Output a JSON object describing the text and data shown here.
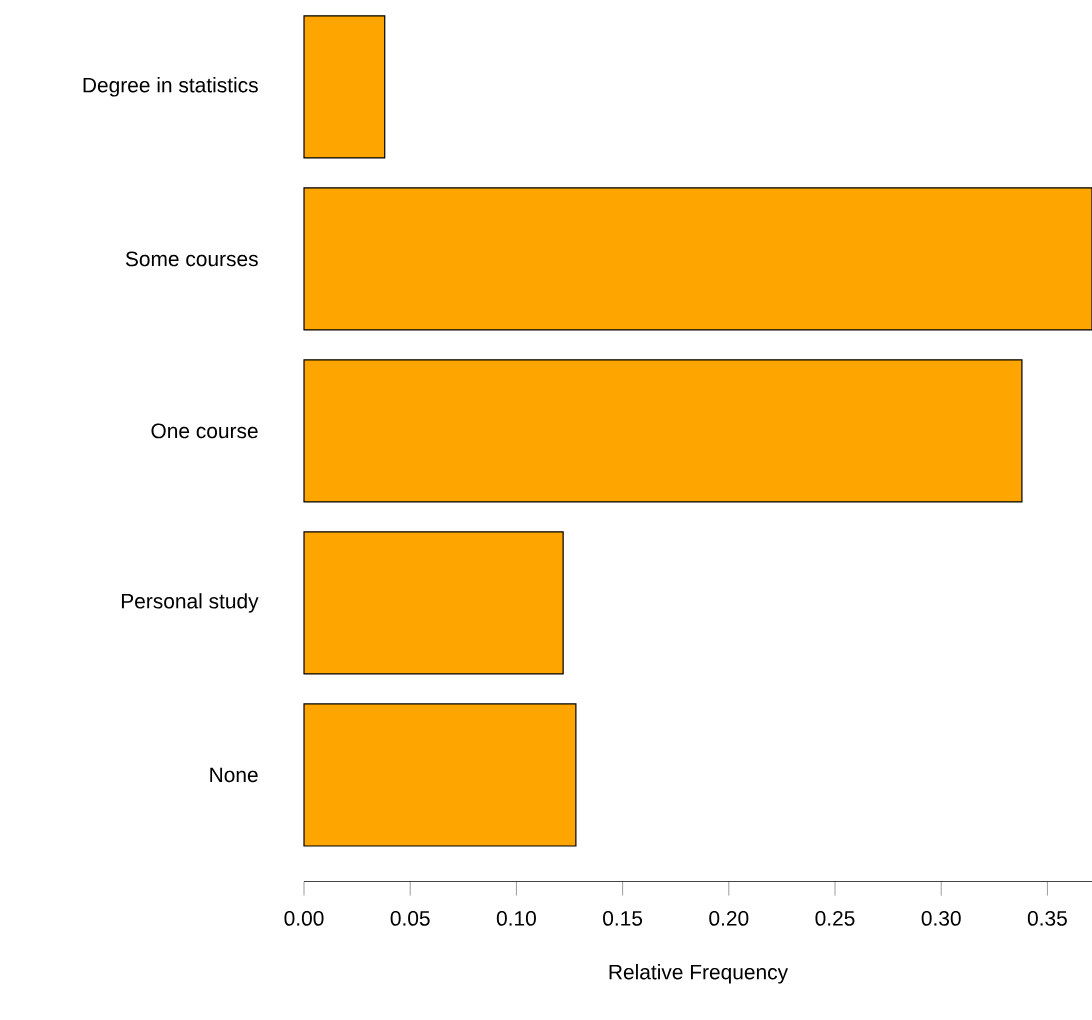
{
  "chart_data": {
    "type": "bar",
    "orientation": "horizontal",
    "xlabel": "Relative Frequency",
    "categories": [
      "Degree in statistics",
      "Some courses",
      "One course",
      "Personal study",
      "None"
    ],
    "values": [
      0.038,
      0.371,
      0.338,
      0.122,
      0.128
    ],
    "color": "#ffa500",
    "xlim": [
      0,
      0.371
    ],
    "xticks": [
      {
        "value": 0,
        "label": "0.00"
      },
      {
        "value": 0.05,
        "label": "0.05"
      },
      {
        "value": 0.1,
        "label": "0.10"
      },
      {
        "value": 0.15,
        "label": "0.15"
      },
      {
        "value": 0.2,
        "label": "0.20"
      },
      {
        "value": 0.25,
        "label": "0.25"
      },
      {
        "value": 0.3,
        "label": "0.30"
      },
      {
        "value": 0.35,
        "label": "0.35"
      }
    ]
  }
}
